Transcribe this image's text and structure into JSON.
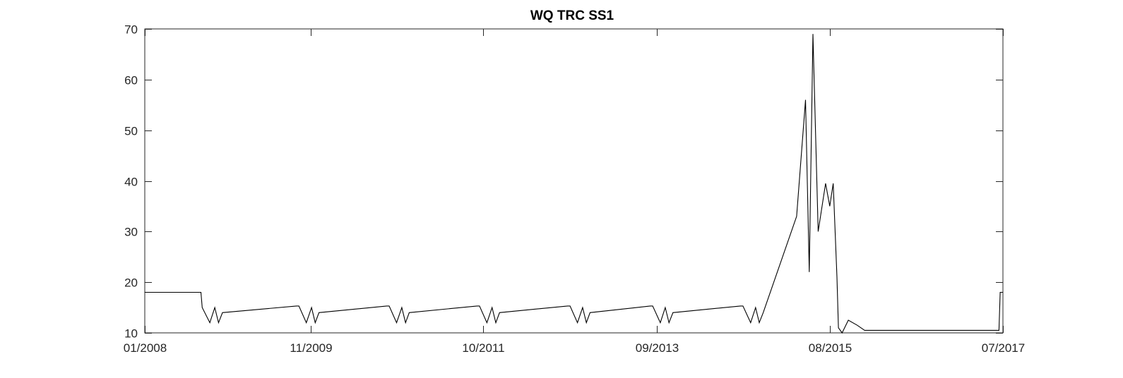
{
  "chart_data": {
    "type": "line",
    "title": "WQ TRC SS1",
    "xlabel": "",
    "ylabel": "",
    "xlim": [
      "2008-01-01",
      "2017-07-01"
    ],
    "ylim": [
      10,
      70
    ],
    "xticks": [
      "01/2008",
      "11/2009",
      "10/2011",
      "09/2013",
      "08/2015",
      "07/2017"
    ],
    "yticks": [
      10,
      20,
      30,
      40,
      50,
      60,
      70
    ],
    "grid": false,
    "box": true,
    "colors": {
      "line": "#000000",
      "axes": "#262626",
      "background": "#ffffff"
    },
    "series": [
      {
        "x": [
          "2008-01-01",
          "2008-08-15",
          "2008-08-20",
          "2008-09-20",
          "2008-10-10",
          "2008-10-25",
          "2008-11-10",
          "2009-09-05",
          "2009-09-15",
          "2009-10-15",
          "2009-11-05",
          "2009-11-20",
          "2009-12-05",
          "2010-09-05",
          "2010-09-15",
          "2010-10-15",
          "2010-11-05",
          "2010-11-20",
          "2010-12-05",
          "2011-09-05",
          "2011-09-15",
          "2011-10-15",
          "2011-11-05",
          "2011-11-20",
          "2011-12-05",
          "2012-09-05",
          "2012-09-15",
          "2012-10-15",
          "2012-11-05",
          "2012-11-20",
          "2012-12-05",
          "2013-08-05",
          "2013-08-15",
          "2013-09-15",
          "2013-10-05",
          "2013-10-20",
          "2013-11-05",
          "2014-08-05",
          "2014-08-15",
          "2014-09-15",
          "2014-10-05",
          "2014-10-20",
          "2014-11-05",
          "2015-03-20",
          "2015-04-25",
          "2015-05-10",
          "2015-05-25",
          "2015-06-15",
          "2015-07-15",
          "2015-08-01",
          "2015-08-15",
          "2015-08-30",
          "2015-09-05",
          "2015-09-20",
          "2015-10-15",
          "2015-11-20",
          "2015-12-20",
          "2016-01-20",
          "2016-06-20",
          "2017-06-15",
          "2017-06-20",
          "2017-07-01"
        ],
        "y": [
          18,
          18,
          15,
          12,
          15,
          12,
          14,
          15.3,
          15.3,
          12,
          15,
          12,
          14,
          15.3,
          15.3,
          12,
          15,
          12,
          14,
          15.3,
          15.3,
          12,
          15,
          12,
          14,
          15.3,
          15.3,
          12,
          15,
          12,
          14,
          15.3,
          15.3,
          12,
          15,
          12,
          14,
          15.3,
          15.3,
          12,
          15,
          12,
          14,
          33,
          56,
          22,
          69,
          30,
          39.5,
          35,
          39.5,
          21,
          11,
          10,
          12.5,
          11.5,
          10.5,
          10.5,
          10.5,
          10.5,
          18,
          18
        ]
      }
    ]
  }
}
